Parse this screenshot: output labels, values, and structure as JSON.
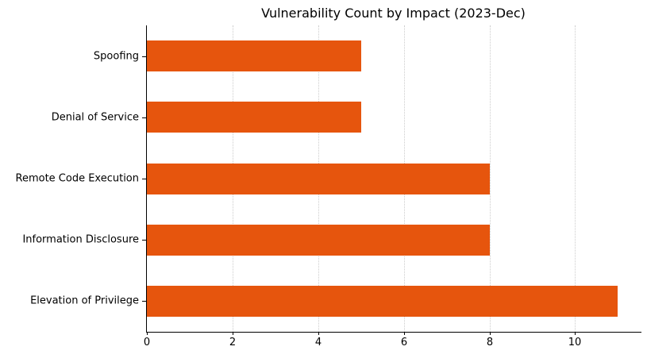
{
  "chart_data": {
    "type": "bar",
    "orientation": "horizontal",
    "title": "Vulnerability Count by Impact (2023-Dec)",
    "categories": [
      "Spoofing",
      "Denial of Service",
      "Remote Code Execution",
      "Information Disclosure",
      "Elevation of Privilege"
    ],
    "values": [
      5,
      5,
      8,
      8,
      11
    ],
    "xlabel": "",
    "ylabel": "",
    "x_ticks": [
      0,
      2,
      4,
      6,
      8,
      10
    ],
    "xlim": [
      0,
      11.55
    ],
    "bar_width_fraction": 0.5,
    "grid": "vertical-dotted",
    "legend": "none",
    "colors": {
      "bar": "#E6550D",
      "gridline": "#cccccc",
      "spine": "#000000",
      "text": "#000000",
      "background": "#ffffff"
    }
  }
}
